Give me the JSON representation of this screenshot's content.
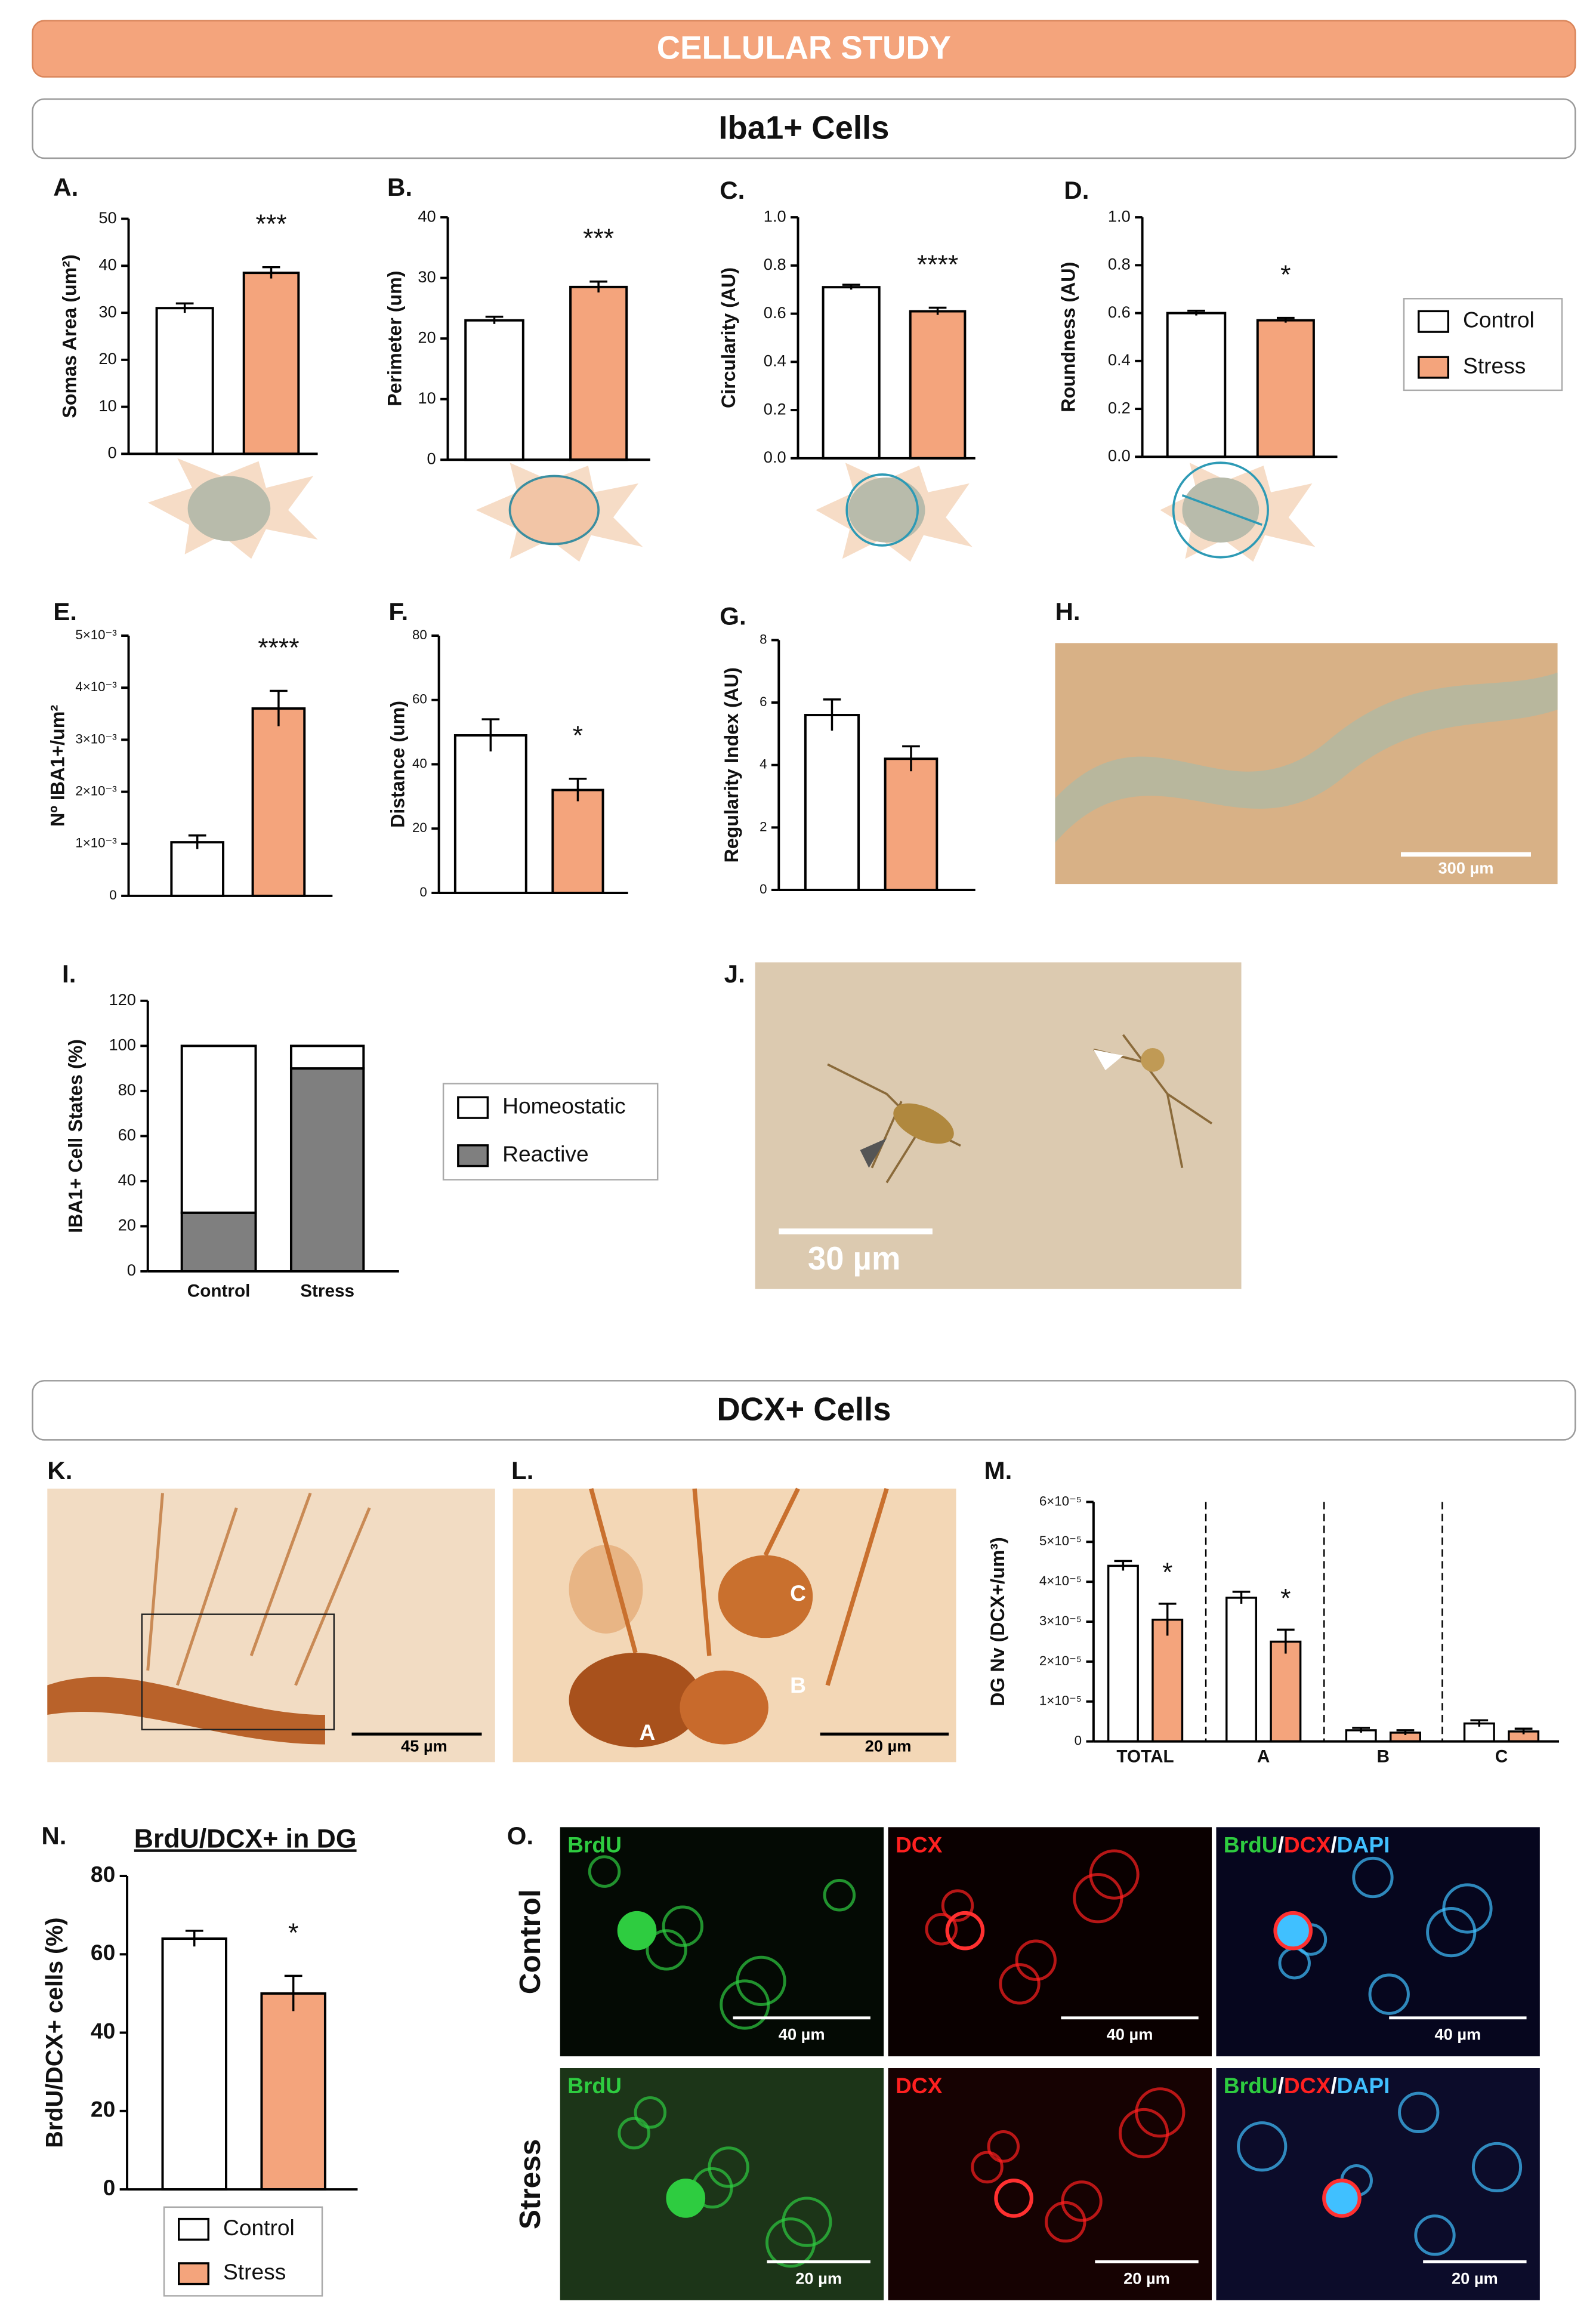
{
  "header": "CELLULAR STUDY",
  "sections": [
    "Iba1+ Cells",
    "DCX+ Cells"
  ],
  "chart_data": [
    {
      "type": "bar",
      "panel": "A.",
      "ylabel": "Somas Area (um²)",
      "ylim": [
        0,
        50
      ],
      "yticks": [
        0,
        10,
        20,
        30,
        40,
        50
      ],
      "values": [
        31,
        38.5
      ],
      "errors": [
        1,
        1.2
      ],
      "colors": [
        "#ffffff",
        "#f4a47c"
      ],
      "annotation": "***"
    },
    {
      "type": "bar",
      "panel": "B.",
      "ylabel": "Perimeter (um)",
      "ylim": [
        0,
        40
      ],
      "yticks": [
        0,
        10,
        20,
        30,
        40
      ],
      "values": [
        23,
        28.5
      ],
      "errors": [
        0.6,
        0.9
      ],
      "colors": [
        "#ffffff",
        "#f4a47c"
      ],
      "annotation": "***"
    },
    {
      "type": "bar",
      "panel": "C.",
      "ylabel": "Circularity (AU)",
      "ylim": [
        0,
        1
      ],
      "yticks": [
        {
          "value": 0,
          "label": "0.0"
        },
        0.2,
        0.4,
        0.6,
        0.8,
        {
          "value": 1,
          "label": "1.0"
        }
      ],
      "values": [
        0.71,
        0.61
      ],
      "errors": [
        0.01,
        0.015
      ],
      "colors": [
        "#ffffff",
        "#f4a47c"
      ],
      "annotation": "****"
    },
    {
      "type": "bar",
      "panel": "D.",
      "ylabel": "Roundness (AU)",
      "ylim": [
        0,
        1
      ],
      "yticks": [
        {
          "value": 0,
          "label": "0.0"
        },
        0.2,
        0.4,
        0.6,
        0.8,
        {
          "value": 1,
          "label": "1.0"
        }
      ],
      "values": [
        0.6,
        0.57
      ],
      "errors": [
        0.01,
        0.01
      ],
      "colors": [
        "#ffffff",
        "#f4a47c"
      ],
      "annotation": "*",
      "legend": [
        "Control",
        "Stress"
      ]
    },
    {
      "type": "bar",
      "panel": "E.",
      "ylabel": "Nº IBA1+/um²",
      "ylim": [
        0,
        0.005
      ],
      "yticks": [
        0,
        {
          "value": 0.001,
          "label": "1×10⁻³"
        },
        {
          "value": 0.002,
          "label": "2×10⁻³"
        },
        {
          "value": 0.003,
          "label": "3×10⁻³"
        },
        {
          "value": 0.004,
          "label": "4×10⁻³"
        },
        {
          "value": 0.005,
          "label": "5×10⁻³"
        }
      ],
      "values": [
        0.00103,
        0.0036
      ],
      "errors": [
        0.00013,
        0.00034
      ],
      "colors": [
        "#ffffff",
        "#f4a47c"
      ],
      "annotation": "****"
    },
    {
      "type": "bar",
      "panel": "F.",
      "ylabel": "Distance (um)",
      "ylim": [
        0,
        80
      ],
      "yticks": [
        0,
        20,
        40,
        60,
        80
      ],
      "values": [
        49,
        32
      ],
      "errors": [
        5,
        3.5
      ],
      "colors": [
        "#ffffff",
        "#f4a47c"
      ],
      "annotation": "*"
    },
    {
      "type": "bar",
      "panel": "G.",
      "ylabel": "Regularity Index (AU)",
      "ylim": [
        0,
        8
      ],
      "yticks": [
        0,
        2,
        4,
        6,
        8
      ],
      "values": [
        5.6,
        4.2
      ],
      "errors": [
        0.5,
        0.4
      ],
      "colors": [
        "#ffffff",
        "#f4a47c"
      ]
    },
    {
      "type": "stacked_bar",
      "panel": "I.",
      "ylabel": "IBA1+ Cell States (%)",
      "ylim": [
        0,
        120
      ],
      "yticks": [
        0,
        20,
        40,
        60,
        80,
        100,
        120
      ],
      "categories": [
        "Control",
        "Stress"
      ],
      "series": [
        {
          "name": "Reactive",
          "color": "#7f7f7f",
          "values": [
            26,
            90
          ]
        },
        {
          "name": "Homeostatic",
          "color": "#ffffff",
          "values": [
            74,
            10
          ]
        }
      ]
    },
    {
      "type": "grouped_bar",
      "panel": "M.",
      "ylabel": "DG Nv (DCX+/um³)",
      "ylim": [
        0,
        6e-05
      ],
      "yticks": [
        0,
        {
          "value": 1e-05,
          "label": "1×10⁻⁵"
        },
        {
          "value": 2e-05,
          "label": "2×10⁻⁵"
        },
        {
          "value": 3e-05,
          "label": "3×10⁻⁵"
        },
        {
          "value": 4e-05,
          "label": "4×10⁻⁵"
        },
        {
          "value": 5e-05,
          "label": "5×10⁻⁵"
        },
        {
          "value": 6e-05,
          "label": "6×10⁻⁵"
        }
      ],
      "categories": [
        "TOTAL",
        "A",
        "B",
        "C"
      ],
      "series": [
        {
          "color": "#ffffff",
          "values": [
            4.4e-05,
            3.6e-05,
            2.8e-06,
            4.5e-06
          ],
          "errors": [
            1.2e-06,
            1.5e-06,
            6e-07,
            8e-07
          ]
        },
        {
          "color": "#f4a47c",
          "values": [
            3.05e-05,
            2.5e-05,
            2.2e-06,
            2.5e-06
          ],
          "errors": [
            4e-06,
            3e-06,
            6e-07,
            7e-07
          ]
        }
      ],
      "annotations": [
        "*",
        "*",
        null,
        null
      ]
    },
    {
      "type": "bar",
      "panel": "N.",
      "title": "BrdU/DCX+ in DG",
      "ylabel": "BrdU/DCX+ cells (%)",
      "ylim": [
        0,
        80
      ],
      "yticks": [
        0,
        20,
        40,
        60,
        80
      ],
      "values": [
        64,
        50
      ],
      "errors": [
        2,
        4.5
      ],
      "colors": [
        "#ffffff",
        "#f4a47c"
      ],
      "annotation": "*",
      "legend": [
        "Control",
        "Stress"
      ]
    }
  ],
  "images": [
    {
      "panel": "H.",
      "scale_bar": "300 µm"
    },
    {
      "panel": "J.",
      "scale_bar": "30 µm"
    },
    {
      "panel": "K.",
      "scale_bar": "45 µm"
    },
    {
      "panel": "L.",
      "scale_bar": "20 µm",
      "labels": [
        "A",
        "B",
        "C"
      ]
    },
    {
      "panel": "O.",
      "rows": [
        "Control",
        "Stress"
      ],
      "columns": [
        "BrdU",
        "DCX"
      ],
      "merged": [
        "BrdU",
        "DCX",
        "DAPI"
      ],
      "separator": "/",
      "scale_bars": [
        "40 µm",
        "20 µm"
      ]
    }
  ]
}
